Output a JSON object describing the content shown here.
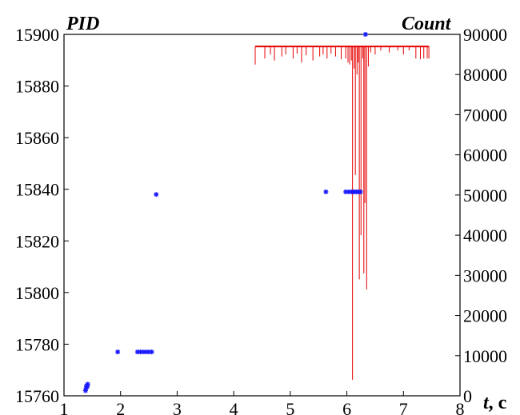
{
  "chart_data": {
    "type": "scatter",
    "title": "",
    "xlabel": "t",
    "xlabel_unit": "c",
    "ylabel_left": "PID",
    "ylabel_right": "Count",
    "xlim": [
      1,
      8
    ],
    "ylim_left": [
      15760,
      15900
    ],
    "ylim_right": [
      0,
      90000
    ],
    "x_ticks": [
      1,
      2,
      3,
      4,
      5,
      6,
      7,
      8
    ],
    "y_left_ticks": [
      15760,
      15780,
      15800,
      15820,
      15840,
      15860,
      15880,
      15900
    ],
    "y_right_ticks": [
      0,
      10000,
      20000,
      30000,
      40000,
      50000,
      60000,
      70000,
      80000,
      90000
    ],
    "grid": false,
    "colors": {
      "pid": "#1a1aff",
      "count": "#e60000",
      "axis": "#000000"
    },
    "series": [
      {
        "kind": "scatter",
        "axis": "left",
        "marker": "*",
        "points": [
          [
            1.38,
            15762
          ],
          [
            1.39,
            15763
          ],
          [
            1.4,
            15764
          ],
          [
            1.41,
            15763.5
          ],
          [
            1.42,
            15764.5
          ],
          [
            1.95,
            15777
          ],
          [
            2.3,
            15777
          ],
          [
            2.35,
            15777
          ],
          [
            2.4,
            15777
          ],
          [
            2.45,
            15777
          ],
          [
            2.5,
            15777
          ],
          [
            2.55,
            15777
          ],
          [
            2.63,
            15838
          ],
          [
            5.63,
            15839
          ],
          [
            5.98,
            15839
          ],
          [
            6.03,
            15839
          ],
          [
            6.08,
            15839
          ],
          [
            6.12,
            15839
          ],
          [
            6.16,
            15839
          ],
          [
            6.2,
            15839
          ],
          [
            6.24,
            15839
          ],
          [
            6.33,
            15900
          ]
        ]
      },
      {
        "kind": "line",
        "axis": "right",
        "baseline": 87000,
        "start": 4.38,
        "end": 7.45,
        "dips": [
          [
            4.38,
            82500
          ],
          [
            4.55,
            84000
          ],
          [
            4.65,
            85000
          ],
          [
            4.72,
            83500
          ],
          [
            4.85,
            84500
          ],
          [
            4.92,
            85000
          ],
          [
            5.05,
            84000
          ],
          [
            5.12,
            85200
          ],
          [
            5.2,
            83000
          ],
          [
            5.28,
            84800
          ],
          [
            5.4,
            83500
          ],
          [
            5.52,
            84500
          ],
          [
            5.58,
            85000
          ],
          [
            5.65,
            84000
          ],
          [
            5.72,
            85200
          ],
          [
            5.8,
            84500
          ],
          [
            5.9,
            83800
          ],
          [
            5.98,
            84000
          ],
          [
            6.02,
            83000
          ],
          [
            6.05,
            82500
          ],
          [
            6.08,
            83500
          ],
          [
            6.1,
            4000
          ],
          [
            6.13,
            81500
          ],
          [
            6.15,
            55000
          ],
          [
            6.18,
            80000
          ],
          [
            6.2,
            83000
          ],
          [
            6.22,
            29000
          ],
          [
            6.25,
            40000
          ],
          [
            6.28,
            84000
          ],
          [
            6.3,
            30500
          ],
          [
            6.32,
            48000
          ],
          [
            6.35,
            26500
          ],
          [
            6.38,
            82000
          ],
          [
            6.42,
            85500
          ],
          [
            6.5,
            85000
          ],
          [
            6.6,
            86000
          ],
          [
            6.75,
            85500
          ],
          [
            6.9,
            86000
          ],
          [
            7.0,
            85000
          ],
          [
            7.1,
            86000
          ],
          [
            7.22,
            84000
          ],
          [
            7.3,
            83800
          ],
          [
            7.36,
            84000
          ],
          [
            7.42,
            84000
          ],
          [
            7.45,
            84000
          ]
        ]
      }
    ]
  }
}
